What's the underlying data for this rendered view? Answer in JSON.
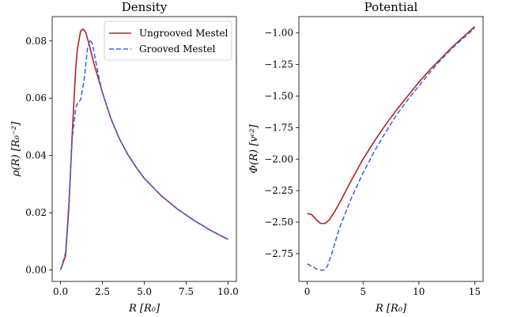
{
  "chart_data": [
    {
      "type": "line",
      "title": "Density",
      "xlabel": "R [R₀]",
      "ylabel": "ρ(R) [R₀⁻²]",
      "xlim": [
        -0.5,
        10.5
      ],
      "ylim": [
        -0.004,
        0.0885
      ],
      "xticks": [
        0.0,
        2.5,
        5.0,
        7.5,
        10.0
      ],
      "xtick_labels": [
        "0.0",
        "2.5",
        "5.0",
        "7.5",
        "10.0"
      ],
      "yticks": [
        0.0,
        0.02,
        0.04,
        0.06,
        0.08
      ],
      "ytick_labels": [
        "0.00",
        "0.02",
        "0.04",
        "0.06",
        "0.08"
      ],
      "grid": false,
      "legend": "top-right",
      "series": [
        {
          "name": "Ungrooved Mestel",
          "color": "#b22222",
          "style": "solid",
          "x": [
            0.0,
            0.3,
            0.5,
            0.7,
            0.9,
            1.0,
            1.2,
            1.35,
            1.5,
            1.7,
            2.0,
            2.3,
            2.5,
            3.0,
            3.5,
            4.0,
            4.5,
            5.0,
            6.0,
            7.0,
            8.0,
            9.0,
            10.0
          ],
          "y": [
            0.0,
            0.005,
            0.022,
            0.048,
            0.07,
            0.077,
            0.0835,
            0.0842,
            0.083,
            0.079,
            0.072,
            0.066,
            0.062,
            0.053,
            0.046,
            0.0405,
            0.036,
            0.032,
            0.026,
            0.0212,
            0.0172,
            0.0137,
            0.0107
          ]
        },
        {
          "name": "Grooved Mestel",
          "color": "#4169e1",
          "style": "dashed",
          "x": [
            0.0,
            0.3,
            0.5,
            0.7,
            0.9,
            1.0,
            1.2,
            1.4,
            1.6,
            1.75,
            1.9,
            2.1,
            2.3,
            2.5,
            3.0,
            3.5,
            4.0,
            4.5,
            5.0,
            6.0,
            7.0,
            8.0,
            9.0,
            10.0
          ],
          "y": [
            0.0,
            0.006,
            0.024,
            0.046,
            0.0565,
            0.058,
            0.0595,
            0.066,
            0.077,
            0.0805,
            0.079,
            0.073,
            0.067,
            0.062,
            0.053,
            0.046,
            0.0405,
            0.036,
            0.032,
            0.026,
            0.0212,
            0.0172,
            0.0137,
            0.0107
          ]
        }
      ]
    },
    {
      "type": "line",
      "title": "Potential",
      "xlabel": "R [R₀]",
      "ylabel": "Φ(R) [vᶜ²]",
      "xlim": [
        -0.75,
        15.75
      ],
      "ylim": [
        -2.97,
        -0.87
      ],
      "xticks": [
        0,
        5,
        10,
        15
      ],
      "xtick_labels": [
        "0",
        "5",
        "10",
        "15"
      ],
      "yticks": [
        -2.75,
        -2.5,
        -2.25,
        -2.0,
        -1.75,
        -1.5,
        -1.25,
        -1.0
      ],
      "ytick_labels": [
        "−2.75",
        "−2.50",
        "−2.25",
        "−2.00",
        "−1.75",
        "−1.50",
        "−1.25",
        "−1.00"
      ],
      "grid": false,
      "series": [
        {
          "name": "Ungrooved Mestel",
          "color": "#b22222",
          "style": "solid",
          "x": [
            0.0,
            0.4,
            0.8,
            1.2,
            1.6,
            2.0,
            2.5,
            3.0,
            4.0,
            5.0,
            6.0,
            7.0,
            8.0,
            9.0,
            10.0,
            11.0,
            12.0,
            13.0,
            14.0,
            15.0
          ],
          "y": [
            -2.43,
            -2.44,
            -2.48,
            -2.51,
            -2.51,
            -2.48,
            -2.41,
            -2.33,
            -2.16,
            -2.0,
            -1.86,
            -1.73,
            -1.61,
            -1.5,
            -1.39,
            -1.29,
            -1.2,
            -1.11,
            -1.03,
            -0.95
          ]
        },
        {
          "name": "Grooved Mestel",
          "color": "#4169e1",
          "style": "dashed",
          "x": [
            0.0,
            0.4,
            0.8,
            1.2,
            1.5,
            1.8,
            2.2,
            2.6,
            3.0,
            3.5,
            4.0,
            5.0,
            6.0,
            7.0,
            8.0,
            9.0,
            10.0,
            11.0,
            12.0,
            13.0,
            14.0,
            15.0
          ],
          "y": [
            -2.83,
            -2.85,
            -2.87,
            -2.88,
            -2.88,
            -2.85,
            -2.75,
            -2.63,
            -2.52,
            -2.41,
            -2.3,
            -2.11,
            -1.94,
            -1.79,
            -1.65,
            -1.53,
            -1.42,
            -1.31,
            -1.21,
            -1.12,
            -1.04,
            -0.96
          ]
        }
      ]
    }
  ]
}
